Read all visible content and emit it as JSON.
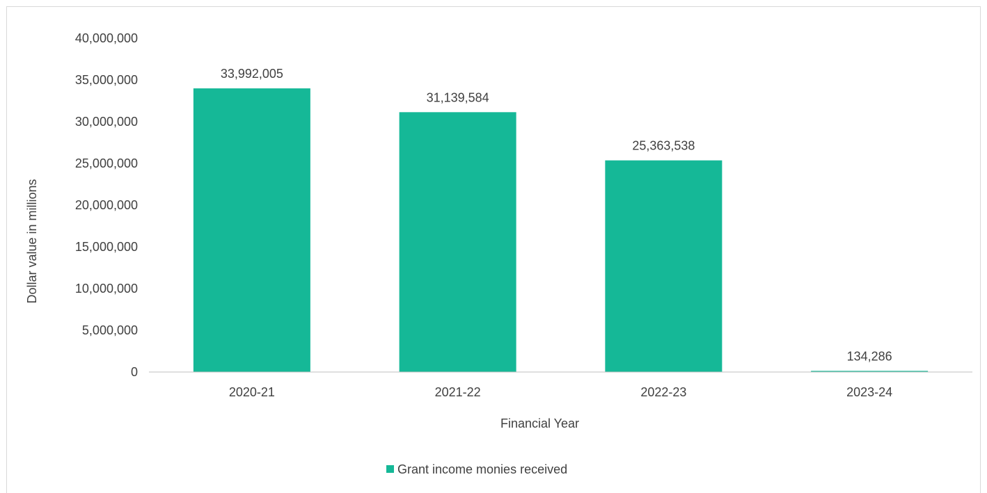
{
  "chart_data": {
    "type": "bar",
    "categories": [
      "2020-21",
      "2021-22",
      "2022-23",
      "2023-24"
    ],
    "series": [
      {
        "name": "Grant income monies received",
        "values": [
          33992005,
          31139584,
          25363538,
          134286
        ],
        "data_labels": [
          "33,992,005",
          "31,139,584",
          "25,363,538",
          "134,286"
        ],
        "color": "#15b897"
      }
    ],
    "xlabel": "Financial Year",
    "ylabel": "Dollar  value in millions",
    "ylim": [
      0,
      40000000
    ],
    "yticks": [
      0,
      5000000,
      10000000,
      15000000,
      20000000,
      25000000,
      30000000,
      35000000,
      40000000
    ],
    "ytick_labels": [
      "0",
      "5,000,000",
      "10,000,000",
      "15,000,000",
      "20,000,000",
      "25,000,000",
      "30,000,000",
      "35,000,000",
      "40,000,000"
    ],
    "grid": false,
    "legend_position": "bottom",
    "colors": {
      "axis_line": "#bfbfbf",
      "text": "#404040"
    }
  }
}
